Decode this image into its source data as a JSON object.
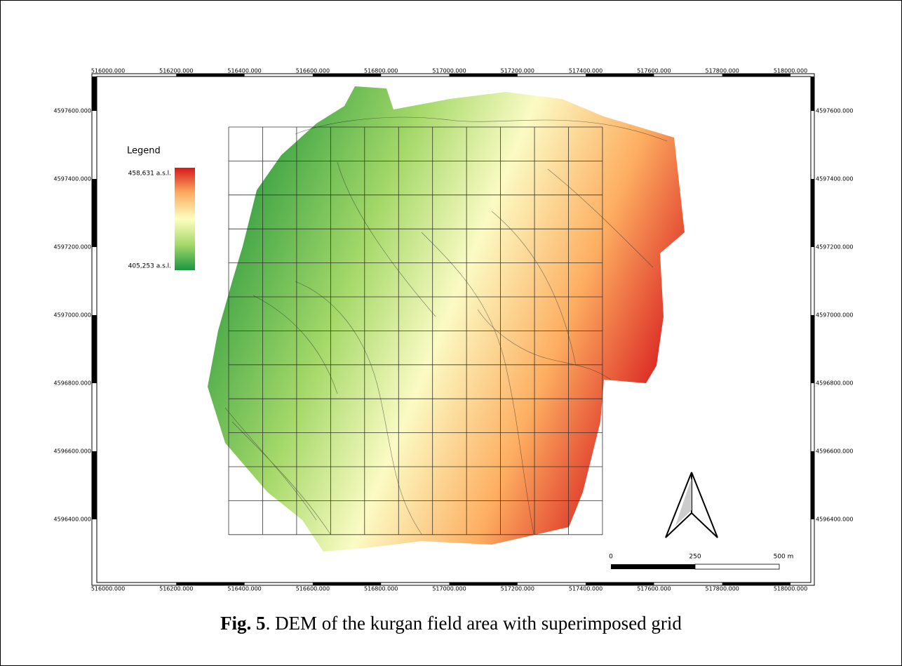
{
  "map": {
    "x_labels": [
      "516000.000",
      "516200.000",
      "516400.000",
      "516600.000",
      "516800.000",
      "517000.000",
      "517200.000",
      "517400.000",
      "517600.000",
      "517800.000",
      "518000.000"
    ],
    "y_labels": [
      "4597600.000",
      "4597400.000",
      "4597200.000",
      "4597000.000",
      "4596800.000",
      "4596600.000",
      "4596400.000"
    ],
    "legend": {
      "title": "Legend",
      "max_label": "458,631 a.s.l.",
      "min_label": "405,253 a.s.l."
    },
    "scale_bar": [
      "0",
      "250",
      "500 m"
    ]
  },
  "caption": {
    "label": "Fig. 5",
    "text": ". DEM of the kurgan field area with superimposed grid"
  }
}
